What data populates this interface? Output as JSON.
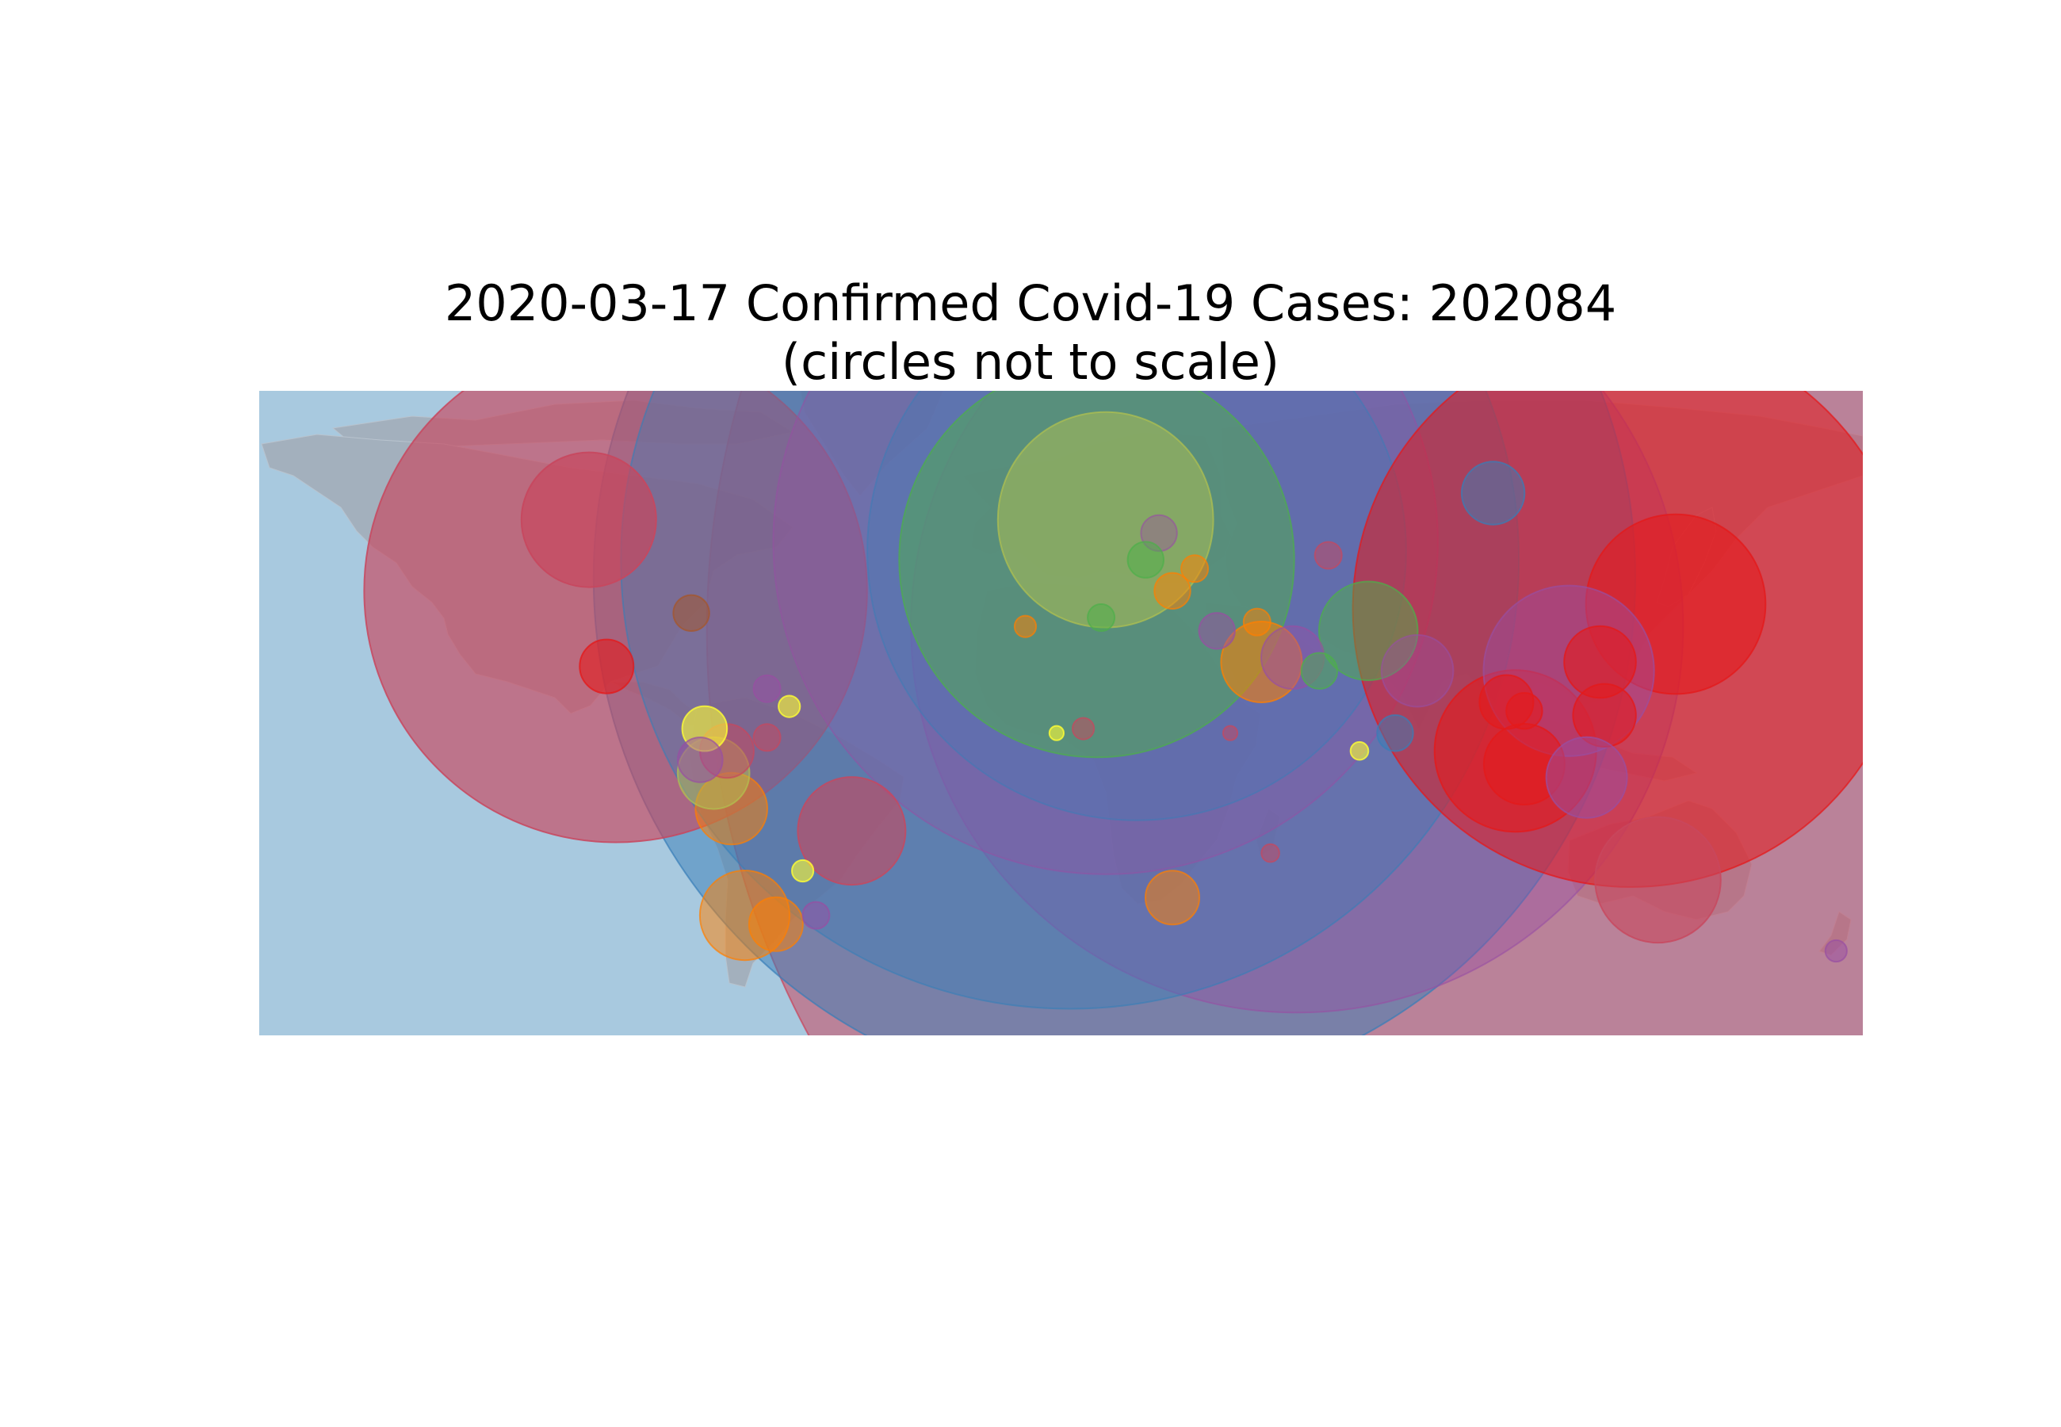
{
  "title": {
    "line1": "2020-03-17 Confirmed Covid-19 Cases: 202084",
    "line2": "(circles not to scale)"
  },
  "colors": {
    "ocean": "#a8c9df",
    "land": "#a3b0bd",
    "red": "#e41a1c",
    "rose": "#c8475e",
    "blue": "#377eb8",
    "purple": "#984ea3",
    "green": "#4daf4a",
    "orange": "#ff7f00",
    "yellow": "#ffff33",
    "olive": "#b2c24f",
    "brown": "#a65628"
  },
  "chart_data": {
    "type": "scatter",
    "projection": "equirectangular",
    "xlim": [
      -180,
      180
    ],
    "ylim": [
      -60,
      85
    ],
    "marker_meaning": "confirmed cases per location, circles not to scale",
    "points": [
      {
        "lon": 112,
        "lat": 31,
        "size": 0.95,
        "color": "rose",
        "alpha": 0.55
      },
      {
        "lon": 12,
        "lat": 43,
        "size": 0.58,
        "color": "blue",
        "alpha": 0.5
      },
      {
        "lon": -100,
        "lat": 40,
        "size": 0.28,
        "color": "rose",
        "alpha": 0.65
      },
      {
        "lon": 53,
        "lat": 32,
        "size": 0.43,
        "color": "purple",
        "alpha": 0.4
      },
      {
        "lon": 2,
        "lat": 47,
        "size": 0.5,
        "color": "blue",
        "alpha": 0.4
      },
      {
        "lon": 10,
        "lat": 51,
        "size": 0.37,
        "color": "purple",
        "alpha": 0.3
      },
      {
        "lon": 17,
        "lat": 49,
        "size": 0.3,
        "color": "blue",
        "alpha": 0.3
      },
      {
        "lon": 8,
        "lat": 47,
        "size": 0.22,
        "color": "green",
        "alpha": 0.5
      },
      {
        "lon": 10,
        "lat": 56,
        "size": 0.12,
        "color": "olive",
        "alpha": 0.5
      },
      {
        "lon": 128,
        "lat": 36,
        "size": 0.31,
        "color": "red",
        "alpha": 0.55
      },
      {
        "lon": 138,
        "lat": 37,
        "size": 0.1,
        "color": "red",
        "alpha": 0.6
      },
      {
        "lon": 134,
        "lat": -25,
        "size": 0.07,
        "color": "rose",
        "alpha": 0.6
      },
      {
        "lon": -106,
        "lat": 56,
        "size": 0.075,
        "color": "rose",
        "alpha": 0.7
      },
      {
        "lon": -47,
        "lat": -14,
        "size": 0.06,
        "color": "rose",
        "alpha": 0.6
      },
      {
        "lon": 102,
        "lat": 4,
        "size": 0.09,
        "color": "red",
        "alpha": 0.6
      },
      {
        "lon": 114,
        "lat": 22,
        "size": 0.095,
        "color": "purple",
        "alpha": 0.45
      },
      {
        "lon": 104,
        "lat": 1,
        "size": 0.045,
        "color": "red",
        "alpha": 0.6
      },
      {
        "lon": 121,
        "lat": 24,
        "size": 0.04,
        "color": "red",
        "alpha": 0.6
      },
      {
        "lon": 122,
        "lat": 12,
        "size": 0.035,
        "color": "red",
        "alpha": 0.6
      },
      {
        "lon": 118,
        "lat": -2,
        "size": 0.045,
        "color": "purple",
        "alpha": 0.5
      },
      {
        "lon": 104,
        "lat": 13,
        "size": 0.02,
        "color": "red",
        "alpha": 0.6
      },
      {
        "lon": 100,
        "lat": 15,
        "size": 0.03,
        "color": "red",
        "alpha": 0.6
      },
      {
        "lon": 69,
        "lat": 31,
        "size": 0.055,
        "color": "green",
        "alpha": 0.5
      },
      {
        "lon": 80,
        "lat": 22,
        "size": 0.04,
        "color": "purple",
        "alpha": 0.4
      },
      {
        "lon": 45,
        "lat": 24,
        "size": 0.045,
        "color": "orange",
        "alpha": 0.55
      },
      {
        "lon": 52,
        "lat": 25,
        "size": 0.035,
        "color": "purple",
        "alpha": 0.45
      },
      {
        "lon": 97,
        "lat": 62,
        "size": 0.035,
        "color": "blue",
        "alpha": 0.5
      },
      {
        "lon": -102,
        "lat": 23,
        "size": 0.03,
        "color": "red",
        "alpha": 0.6
      },
      {
        "lon": -74,
        "lat": -9,
        "size": 0.04,
        "color": "orange",
        "alpha": 0.5
      },
      {
        "lon": -71,
        "lat": -33,
        "size": 0.05,
        "color": "orange",
        "alpha": 0.5
      },
      {
        "lon": -64,
        "lat": -35,
        "size": 0.03,
        "color": "orange",
        "alpha": 0.5
      },
      {
        "lon": -78,
        "lat": -1,
        "size": 0.04,
        "color": "olive",
        "alpha": 0.5
      },
      {
        "lon": -75,
        "lat": 4,
        "size": 0.03,
        "color": "rose",
        "alpha": 0.5
      },
      {
        "lon": -80,
        "lat": 9,
        "size": 0.025,
        "color": "yellow",
        "alpha": 0.6
      },
      {
        "lon": -81,
        "lat": 2,
        "size": 0.025,
        "color": "purple",
        "alpha": 0.5
      },
      {
        "lon": 25,
        "lat": -29,
        "size": 0.03,
        "color": "orange",
        "alpha": 0.5
      },
      {
        "lon": 22,
        "lat": 53,
        "size": 0.02,
        "color": "purple",
        "alpha": 0.4
      },
      {
        "lon": 19,
        "lat": 47,
        "size": 0.02,
        "color": "green",
        "alpha": 0.5
      },
      {
        "lon": 35,
        "lat": 31,
        "size": 0.02,
        "color": "purple",
        "alpha": 0.5
      },
      {
        "lon": 25,
        "lat": 40,
        "size": 0.02,
        "color": "orange",
        "alpha": 0.5
      },
      {
        "lon": 30,
        "lat": 45,
        "size": 0.015,
        "color": "orange",
        "alpha": 0.5
      },
      {
        "lon": 60,
        "lat": 48,
        "size": 0.015,
        "color": "rose",
        "alpha": 0.5
      },
      {
        "lon": -83,
        "lat": 35,
        "size": 0.02,
        "color": "brown",
        "alpha": 0.5
      },
      {
        "lon": -66,
        "lat": 18,
        "size": 0.015,
        "color": "purple",
        "alpha": 0.5
      },
      {
        "lon": -61,
        "lat": 14,
        "size": 0.012,
        "color": "yellow",
        "alpha": 0.6
      },
      {
        "lon": -66,
        "lat": 7,
        "size": 0.015,
        "color": "rose",
        "alpha": 0.5
      },
      {
        "lon": -58,
        "lat": -23,
        "size": 0.012,
        "color": "yellow",
        "alpha": 0.6
      },
      {
        "lon": -55,
        "lat": -33,
        "size": 0.015,
        "color": "purple",
        "alpha": 0.5
      },
      {
        "lon": 75,
        "lat": 8,
        "size": 0.02,
        "color": "blue",
        "alpha": 0.5
      },
      {
        "lon": 174,
        "lat": -41,
        "size": 0.012,
        "color": "purple",
        "alpha": 0.5
      },
      {
        "lon": 47,
        "lat": -19,
        "size": 0.01,
        "color": "rose",
        "alpha": 0.5
      },
      {
        "lon": 58,
        "lat": 22,
        "size": 0.02,
        "color": "green",
        "alpha": 0.5
      },
      {
        "lon": -8,
        "lat": 32,
        "size": 0.012,
        "color": "orange",
        "alpha": 0.5
      },
      {
        "lon": 5,
        "lat": 9,
        "size": 0.012,
        "color": "rose",
        "alpha": 0.5
      },
      {
        "lon": -1,
        "lat": 8,
        "size": 0.008,
        "color": "yellow",
        "alpha": 0.6
      },
      {
        "lon": 38,
        "lat": 8,
        "size": 0.008,
        "color": "rose",
        "alpha": 0.5
      },
      {
        "lon": 67,
        "lat": 4,
        "size": 0.01,
        "color": "yellow",
        "alpha": 0.6
      },
      {
        "lon": 9,
        "lat": 34,
        "size": 0.015,
        "color": "green",
        "alpha": 0.5
      },
      {
        "lon": 44,
        "lat": 33,
        "size": 0.015,
        "color": "orange",
        "alpha": 0.5
      }
    ]
  }
}
